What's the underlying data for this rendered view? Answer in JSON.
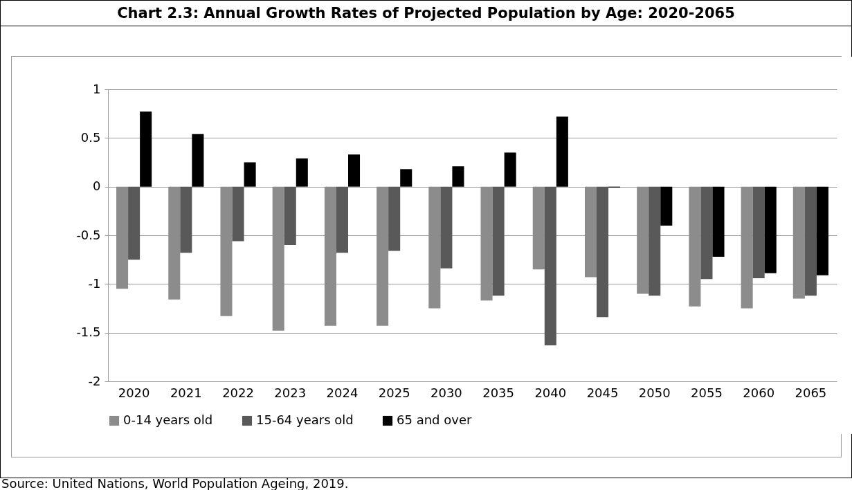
{
  "chart_data": {
    "type": "bar",
    "title": "Chart 2.3: Annual Growth Rates of Projected Population by Age: 2020-2065",
    "categories": [
      "2020",
      "2021",
      "2022",
      "2023",
      "2024",
      "2025",
      "2030",
      "2035",
      "2040",
      "2045",
      "2050",
      "2055",
      "2060",
      "2065"
    ],
    "series": [
      {
        "name": "0-14 years old",
        "color": "#8c8c8c",
        "values": [
          -1.05,
          -1.16,
          -1.33,
          -1.48,
          -1.43,
          -1.43,
          -1.25,
          -1.17,
          -0.85,
          -0.93,
          -1.1,
          -1.23,
          -1.25,
          -1.15
        ]
      },
      {
        "name": "15-64 years old",
        "color": "#595959",
        "values": [
          -0.75,
          -0.68,
          -0.56,
          -0.6,
          -0.68,
          -0.66,
          -0.84,
          -1.12,
          -1.63,
          -1.34,
          -1.12,
          -0.95,
          -0.94,
          -1.12
        ]
      },
      {
        "name": "65 and over",
        "color": "#000000",
        "values": [
          0.77,
          0.54,
          0.25,
          0.29,
          0.33,
          0.18,
          0.21,
          0.35,
          0.72,
          -0.01,
          -0.4,
          -0.72,
          -0.89,
          -0.91
        ]
      }
    ],
    "ylim": [
      -2,
      1
    ],
    "yticks": [
      -2,
      -1.5,
      -1,
      -0.5,
      0,
      0.5,
      1
    ],
    "grid": "y",
    "legend": "bottom",
    "annotations": [
      "Source: United Nations, World Population Ageing, 2019."
    ]
  }
}
